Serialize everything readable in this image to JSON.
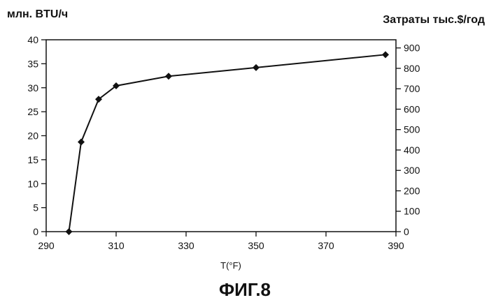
{
  "chart_data": {
    "type": "line",
    "title": "",
    "xlabel": "T(°F)",
    "ylabel_left": "млн. BTU/ч",
    "ylabel_right": "Затраты тыс.$/год",
    "caption": "ФИГ.8",
    "xlim": [
      290,
      390
    ],
    "ylim_left": [
      0,
      40
    ],
    "ylim_right": [
      0,
      940
    ],
    "x_ticks": [
      290,
      310,
      330,
      350,
      370,
      390
    ],
    "y_left_ticks": [
      0,
      5,
      10,
      15,
      20,
      25,
      30,
      35,
      40
    ],
    "y_right_ticks": [
      0,
      100,
      200,
      300,
      400,
      500,
      600,
      700,
      800,
      900
    ],
    "grid": false,
    "series": [
      {
        "x": [
          296.5,
          300,
          305,
          310,
          325,
          350,
          387
        ],
        "y": [
          0,
          18.7,
          27.6,
          30.4,
          32.4,
          34.2,
          36.9
        ],
        "marker": "diamond",
        "color": "#111111"
      }
    ]
  }
}
